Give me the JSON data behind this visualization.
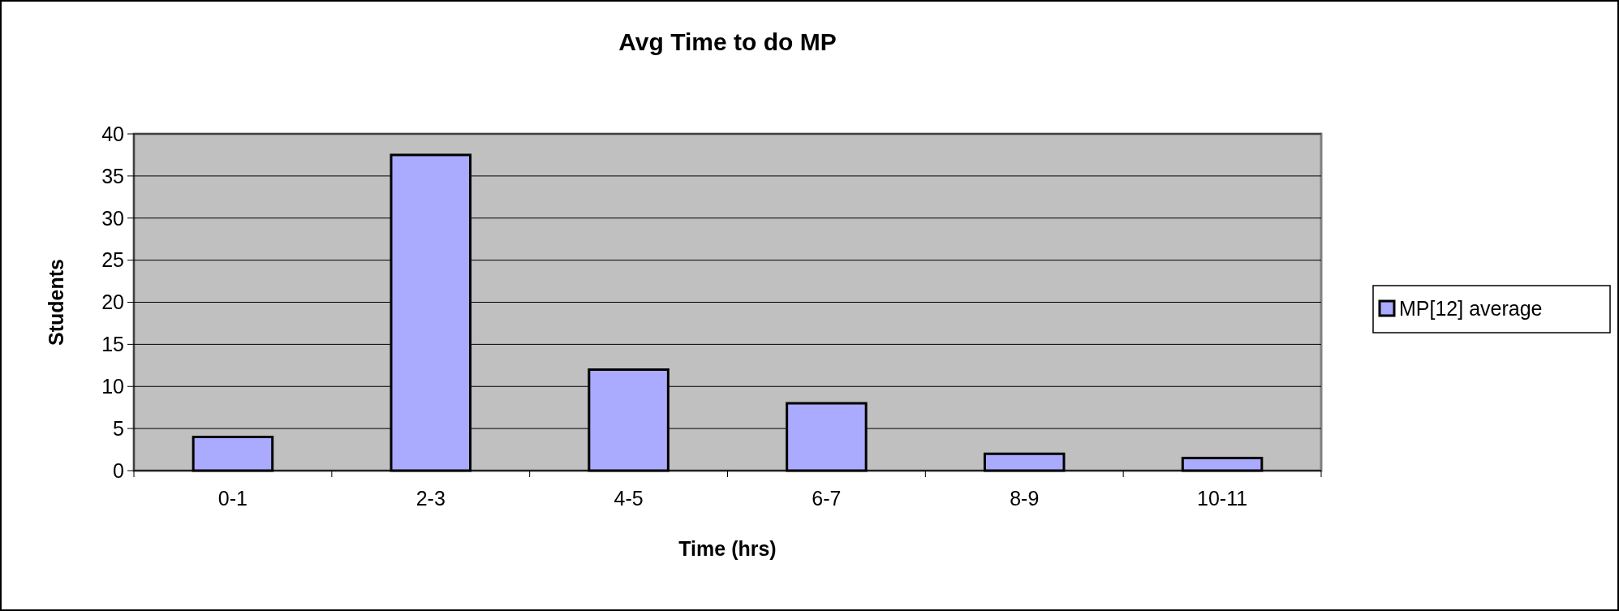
{
  "chart_data": {
    "type": "bar",
    "title": "Avg Time to do MP",
    "xlabel": "Time (hrs)",
    "ylabel": "Students",
    "categories": [
      "0-1",
      "2-3",
      "4-5",
      "6-7",
      "8-9",
      "10-11"
    ],
    "series": [
      {
        "name": "MP[12] average",
        "color": "#aaaaff",
        "values": [
          4,
          37.5,
          12,
          8,
          2,
          1.5
        ]
      }
    ],
    "ylim": [
      0,
      40
    ],
    "yticks": [
      0,
      5,
      10,
      15,
      20,
      25,
      30,
      35,
      40
    ],
    "grid": "y",
    "legend": "right"
  }
}
